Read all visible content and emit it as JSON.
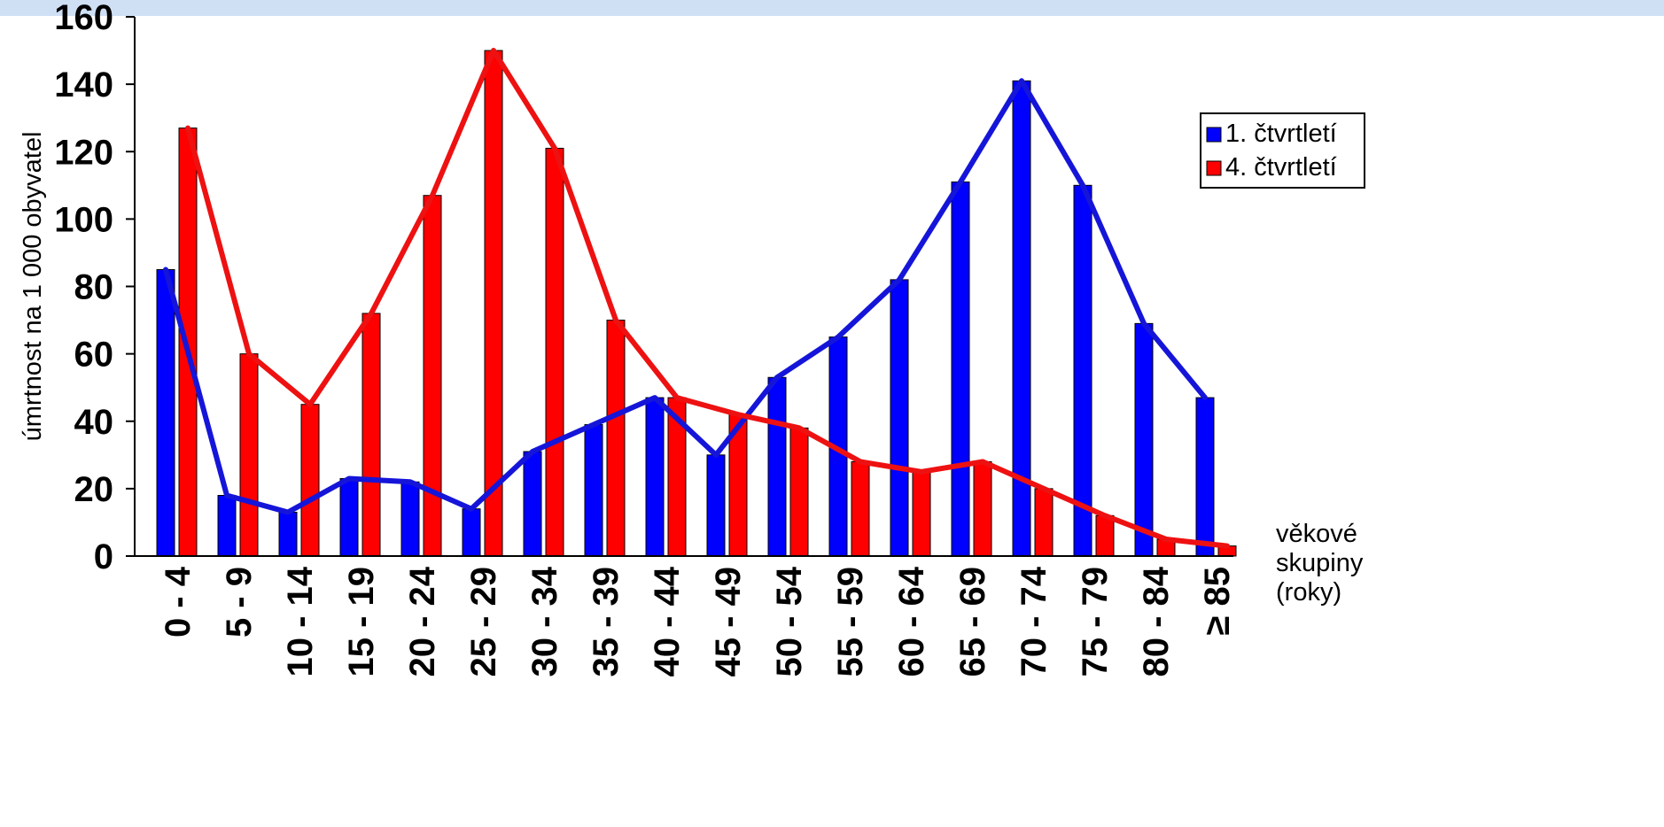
{
  "chart_data": {
    "type": "bar",
    "categories": [
      "0 - 4",
      "5 - 9",
      "10 - 14",
      "15 - 19",
      "20 - 24",
      "25 - 29",
      "30 - 34",
      "35 - 39",
      "40 - 44",
      "45 - 49",
      "50 - 54",
      "55 - 59",
      "60 - 64",
      "65 - 69",
      "70 - 74",
      "75 - 79",
      "80 - 84",
      "≥ 85"
    ],
    "series": [
      {
        "name": "1. čtvrtletí",
        "color": "#0000ff",
        "line_color": "#1515d9",
        "values": [
          85,
          18,
          13,
          23,
          22,
          14,
          31,
          39,
          47,
          30,
          53,
          65,
          82,
          111,
          141,
          110,
          69,
          47
        ]
      },
      {
        "name": "4. čtvrtletí",
        "color": "#ff0000",
        "line_color": "#ee1111",
        "values": [
          127,
          60,
          45,
          72,
          107,
          150,
          121,
          70,
          47,
          42,
          38,
          28,
          25,
          28,
          20,
          12,
          5,
          3
        ]
      }
    ],
    "ylabel": "úmrtnost na 1 000 obyvatel",
    "xlabel_lines": [
      "věkové",
      "skupiny",
      "(roky)"
    ],
    "ylim": [
      0,
      160
    ],
    "yticks": [
      0,
      20,
      40,
      60,
      80,
      100,
      120,
      140,
      160
    ],
    "grid": false,
    "legend_position": "right",
    "overlay_lines": true
  }
}
